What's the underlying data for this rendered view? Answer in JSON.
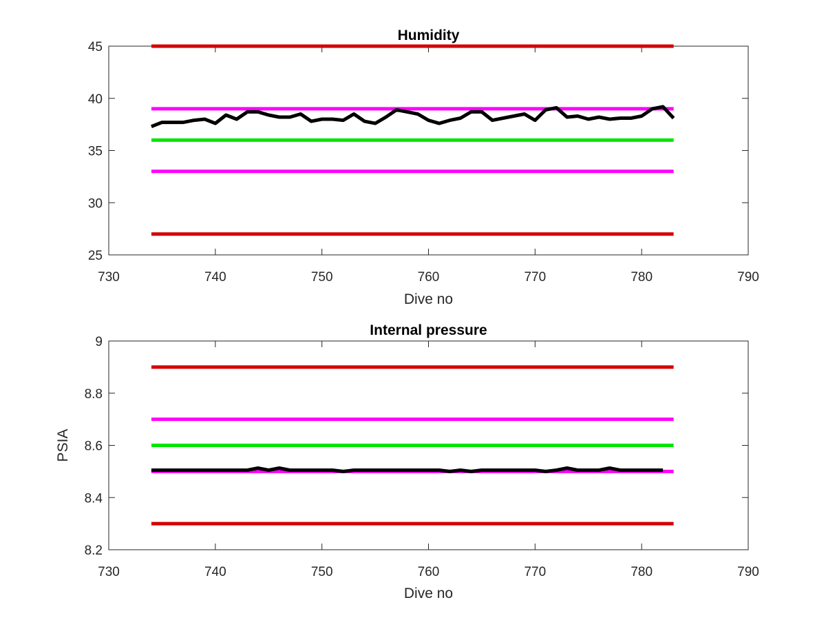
{
  "chart_data": [
    {
      "type": "line",
      "title": "Humidity",
      "xlabel": "Dive no",
      "ylabel": "",
      "xlim": [
        730,
        790
      ],
      "ylim": [
        25,
        45
      ],
      "xticks": [
        730,
        740,
        750,
        760,
        770,
        780,
        790
      ],
      "yticks": [
        25,
        30,
        35,
        40,
        45
      ],
      "grid": false,
      "reference_lines": [
        {
          "y": 45,
          "color": "#d40000",
          "x_range": [
            734,
            783
          ]
        },
        {
          "y": 39,
          "color": "#ff00ff",
          "x_range": [
            734,
            783
          ]
        },
        {
          "y": 36,
          "color": "#00e600",
          "x_range": [
            734,
            783
          ]
        },
        {
          "y": 33,
          "color": "#ff00ff",
          "x_range": [
            734,
            783
          ]
        },
        {
          "y": 27,
          "color": "#d40000",
          "x_range": [
            734,
            783
          ]
        }
      ],
      "series": [
        {
          "color": "#000000",
          "x": [
            734,
            735,
            736,
            737,
            738,
            739,
            740,
            741,
            742,
            743,
            744,
            745,
            746,
            747,
            748,
            749,
            750,
            751,
            752,
            753,
            754,
            755,
            756,
            757,
            758,
            759,
            760,
            761,
            762,
            763,
            764,
            765,
            766,
            767,
            768,
            769,
            770,
            771,
            772,
            773,
            774,
            775,
            776,
            777,
            778,
            779,
            780,
            781,
            782,
            783
          ],
          "values": [
            37.3,
            37.7,
            37.7,
            37.7,
            37.9,
            38.0,
            37.6,
            38.4,
            38.0,
            38.7,
            38.7,
            38.4,
            38.2,
            38.2,
            38.5,
            37.8,
            38.0,
            38.0,
            37.9,
            38.5,
            37.8,
            37.6,
            38.2,
            38.9,
            38.7,
            38.5,
            37.9,
            37.6,
            37.9,
            38.1,
            38.7,
            38.7,
            37.9,
            38.1,
            38.3,
            38.5,
            37.9,
            38.9,
            39.1,
            38.2,
            38.3,
            38.0,
            38.2,
            38.0,
            38.1,
            38.1,
            38.3,
            39.0,
            39.2,
            38.1
          ]
        }
      ]
    },
    {
      "type": "line",
      "title": "Internal pressure",
      "xlabel": "Dive no",
      "ylabel": "PSIA",
      "xlim": [
        730,
        790
      ],
      "ylim": [
        8.2,
        9
      ],
      "xticks": [
        730,
        740,
        750,
        760,
        770,
        780,
        790
      ],
      "yticks": [
        8.2,
        8.4,
        8.6,
        8.8,
        9
      ],
      "grid": false,
      "reference_lines": [
        {
          "y": 8.9,
          "color": "#d40000",
          "x_range": [
            734,
            783
          ]
        },
        {
          "y": 8.7,
          "color": "#ff00ff",
          "x_range": [
            734,
            783
          ]
        },
        {
          "y": 8.6,
          "color": "#00e600",
          "x_range": [
            734,
            783
          ]
        },
        {
          "y": 8.5,
          "color": "#ff00ff",
          "x_range": [
            734,
            783
          ]
        },
        {
          "y": 8.3,
          "color": "#d40000",
          "x_range": [
            734,
            783
          ]
        }
      ],
      "series": [
        {
          "color": "#000000",
          "x": [
            734,
            735,
            736,
            737,
            738,
            739,
            740,
            741,
            742,
            743,
            744,
            745,
            746,
            747,
            748,
            749,
            750,
            751,
            752,
            753,
            754,
            755,
            756,
            757,
            758,
            759,
            760,
            761,
            762,
            763,
            764,
            765,
            766,
            767,
            768,
            769,
            770,
            771,
            772,
            773,
            774,
            775,
            776,
            777,
            778,
            779,
            780,
            781,
            782
          ],
          "values": [
            8.505,
            8.505,
            8.505,
            8.505,
            8.505,
            8.505,
            8.505,
            8.505,
            8.505,
            8.505,
            8.513,
            8.505,
            8.513,
            8.505,
            8.505,
            8.505,
            8.505,
            8.505,
            8.5,
            8.505,
            8.505,
            8.505,
            8.505,
            8.505,
            8.505,
            8.505,
            8.505,
            8.505,
            8.5,
            8.505,
            8.5,
            8.505,
            8.505,
            8.505,
            8.505,
            8.505,
            8.505,
            8.5,
            8.505,
            8.513,
            8.505,
            8.505,
            8.505,
            8.513,
            8.505,
            8.505,
            8.505,
            8.505,
            8.505
          ]
        }
      ]
    }
  ]
}
